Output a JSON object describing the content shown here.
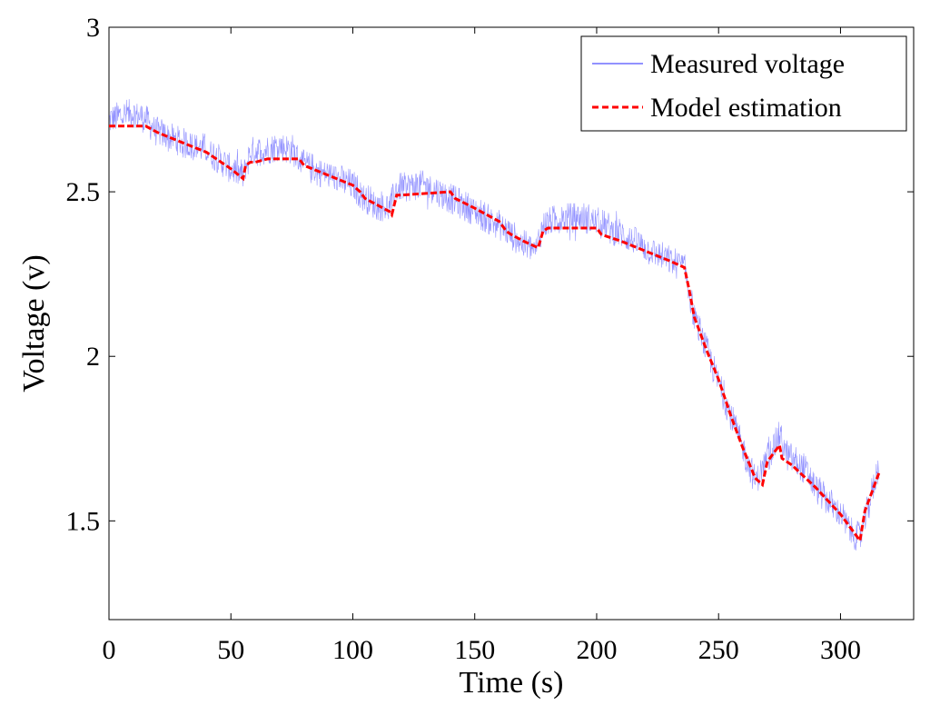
{
  "chart_data": {
    "type": "line",
    "title": "",
    "xlabel": "Time (s)",
    "ylabel": "Voltage (v)",
    "xlim": [
      0,
      330
    ],
    "ylim": [
      1.2,
      3.0
    ],
    "xticks": [
      0,
      50,
      100,
      150,
      200,
      250,
      300
    ],
    "yticks": [
      1.5,
      2,
      2.5,
      3
    ],
    "xtick_labels": [
      "0",
      "50",
      "100",
      "150",
      "200",
      "250",
      "300"
    ],
    "ytick_labels": [
      "1.5",
      "2",
      "2.5",
      "3"
    ],
    "grid": false,
    "legend_position": "top-right",
    "series": [
      {
        "name": "Measured voltage",
        "color": "#0000ff",
        "style": "solid-thin-noisy",
        "band_halfwidth": 0.045,
        "x": [
          0,
          5,
          10,
          15,
          20,
          30,
          40,
          45,
          50,
          55,
          58,
          65,
          70,
          75,
          80,
          90,
          100,
          105,
          110,
          115,
          118,
          125,
          130,
          140,
          150,
          160,
          165,
          170,
          175,
          178,
          185,
          190,
          195,
          200,
          210,
          220,
          230,
          236,
          240,
          245,
          250,
          255,
          260,
          265,
          268,
          272,
          275,
          278,
          285,
          290,
          300,
          305,
          308,
          312,
          316
        ],
        "y": [
          2.72,
          2.73,
          2.74,
          2.72,
          2.68,
          2.65,
          2.63,
          2.6,
          2.57,
          2.55,
          2.62,
          2.63,
          2.64,
          2.63,
          2.58,
          2.55,
          2.52,
          2.48,
          2.46,
          2.45,
          2.51,
          2.52,
          2.52,
          2.48,
          2.44,
          2.4,
          2.37,
          2.34,
          2.32,
          2.4,
          2.42,
          2.42,
          2.42,
          2.41,
          2.37,
          2.33,
          2.29,
          2.27,
          2.12,
          2.02,
          1.92,
          1.82,
          1.72,
          1.62,
          1.66,
          1.72,
          1.76,
          1.7,
          1.66,
          1.6,
          1.52,
          1.46,
          1.45,
          1.56,
          1.68
        ]
      },
      {
        "name": "Model estimation",
        "color": "#ff0000",
        "style": "dashed",
        "x": [
          0,
          15,
          20,
          30,
          40,
          44,
          50,
          55,
          56,
          58,
          60,
          65,
          78,
          80,
          90,
          100,
          103,
          105,
          110,
          115,
          116,
          118,
          120,
          140,
          142,
          150,
          160,
          163,
          165,
          170,
          176,
          178,
          180,
          200,
          202,
          210,
          220,
          230,
          236,
          238,
          240,
          245,
          250,
          255,
          260,
          265,
          268,
          270,
          275,
          276,
          280,
          290,
          300,
          305,
          308,
          310,
          316
        ],
        "y": [
          2.7,
          2.7,
          2.68,
          2.65,
          2.62,
          2.6,
          2.57,
          2.54,
          2.58,
          2.59,
          2.59,
          2.6,
          2.6,
          2.58,
          2.55,
          2.52,
          2.5,
          2.48,
          2.46,
          2.44,
          2.43,
          2.49,
          2.49,
          2.5,
          2.48,
          2.45,
          2.41,
          2.38,
          2.37,
          2.35,
          2.33,
          2.38,
          2.39,
          2.39,
          2.37,
          2.35,
          2.32,
          2.29,
          2.27,
          2.2,
          2.12,
          2.02,
          1.93,
          1.82,
          1.72,
          1.63,
          1.61,
          1.68,
          1.73,
          1.69,
          1.67,
          1.6,
          1.52,
          1.47,
          1.44,
          1.53,
          1.65
        ]
      }
    ]
  }
}
